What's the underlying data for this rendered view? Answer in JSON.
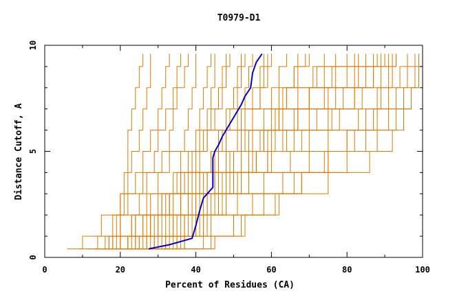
{
  "chart_data": {
    "type": "line",
    "title": "T0979-D1",
    "xlabel": "Percent of Residues (CA)",
    "ylabel": "Distance Cutoff, A",
    "xlim": [
      0,
      100
    ],
    "ylim": [
      0,
      10
    ],
    "x_ticks": [
      "0",
      "20",
      "40",
      "60",
      "80",
      "100"
    ],
    "y_ticks": [
      "0",
      "5",
      "10"
    ],
    "grid": false,
    "colors": {
      "background_series": "#e07800",
      "highlight_series": "#0000cc",
      "axis": "#000000"
    },
    "highlight_series": {
      "x": [
        27.5,
        33,
        39,
        40,
        41,
        42,
        43,
        44.5,
        44.5,
        44.5,
        45,
        46,
        47,
        48,
        49,
        50,
        51,
        52,
        53,
        54.5,
        55,
        56,
        57.5
      ],
      "y": [
        0.4,
        0.6,
        0.9,
        1.5,
        2.2,
        2.8,
        3.0,
        3.3,
        4.0,
        4.7,
        5.0,
        5.3,
        5.7,
        6.0,
        6.3,
        6.6,
        6.9,
        7.2,
        7.6,
        8.0,
        8.7,
        9.2,
        9.6
      ]
    },
    "background_series": [
      {
        "x": [
          13,
          17,
          19,
          21,
          22,
          23,
          25,
          26,
          27,
          28,
          28
        ],
        "y": [
          0.4,
          1.0,
          2.0,
          3.0,
          4.0,
          5.0,
          6.0,
          7.0,
          8.0,
          9.0,
          9.6
        ]
      },
      {
        "x": [
          14,
          18,
          20,
          22,
          24,
          26,
          28,
          30,
          31,
          32,
          33
        ],
        "y": [
          0.4,
          1.0,
          2.0,
          3.0,
          4.0,
          5.0,
          6.0,
          7.0,
          8.0,
          9.0,
          9.6
        ]
      },
      {
        "x": [
          15,
          20,
          23,
          25,
          27,
          29,
          30,
          32,
          34,
          35,
          36
        ],
        "y": [
          0.4,
          1.0,
          2.0,
          3.0,
          4.0,
          5.0,
          6.0,
          7.0,
          8.0,
          9.0,
          9.6
        ]
      },
      {
        "x": [
          16,
          22,
          26,
          28,
          30,
          31,
          33,
          34,
          35,
          37,
          38
        ],
        "y": [
          0.4,
          1.0,
          2.0,
          3.0,
          4.0,
          5.0,
          6.0,
          7.0,
          8.0,
          9.0,
          9.6
        ]
      },
      {
        "x": [
          17,
          24,
          28,
          31,
          34,
          36,
          37,
          38,
          39,
          40,
          40
        ],
        "y": [
          0.4,
          1.0,
          2.0,
          3.0,
          4.0,
          5.0,
          6.0,
          7.0,
          8.0,
          9.0,
          9.6
        ]
      },
      {
        "x": [
          18,
          25,
          30,
          33,
          36,
          38,
          40,
          41,
          42,
          43,
          44
        ],
        "y": [
          0.4,
          1.0,
          2.0,
          3.0,
          4.0,
          5.0,
          6.0,
          7.0,
          8.0,
          9.0,
          9.6
        ]
      },
      {
        "x": [
          19,
          26,
          32,
          36,
          39,
          41,
          43,
          44,
          46,
          47,
          48
        ],
        "y": [
          0.4,
          1.0,
          2.0,
          3.0,
          4.0,
          5.0,
          6.0,
          7.0,
          8.0,
          9.0,
          9.6
        ]
      },
      {
        "x": [
          20,
          28,
          34,
          38,
          41,
          44,
          46,
          48,
          50,
          51,
          52
        ],
        "y": [
          0.4,
          1.0,
          2.0,
          3.0,
          4.0,
          5.0,
          6.0,
          7.0,
          8.0,
          9.0,
          9.6
        ]
      },
      {
        "x": [
          21,
          29,
          35,
          40,
          43,
          46,
          48,
          51,
          53,
          54,
          55
        ],
        "y": [
          0.4,
          1.0,
          2.0,
          3.0,
          4.0,
          5.0,
          6.0,
          7.0,
          8.0,
          9.0,
          9.6
        ]
      },
      {
        "x": [
          22,
          30,
          36,
          41,
          45,
          48,
          51,
          53,
          55,
          57,
          58
        ],
        "y": [
          0.4,
          1.0,
          2.0,
          3.0,
          4.0,
          5.0,
          6.0,
          7.0,
          8.0,
          9.0,
          9.6
        ]
      },
      {
        "x": [
          23,
          32,
          38,
          43,
          47,
          50,
          53,
          55,
          57,
          59,
          60
        ],
        "y": [
          0.4,
          1.0,
          2.0,
          3.0,
          4.0,
          5.0,
          6.0,
          7.0,
          8.0,
          9.0,
          9.6
        ]
      },
      {
        "x": [
          25,
          33,
          39,
          44,
          48,
          52,
          55,
          58,
          60,
          62,
          64
        ],
        "y": [
          0.4,
          1.0,
          2.0,
          3.0,
          4.0,
          5.0,
          6.0,
          7.0,
          8.0,
          9.0,
          9.6
        ]
      },
      {
        "x": [
          26,
          34,
          40,
          45,
          50,
          54,
          57,
          60,
          63,
          66,
          69
        ],
        "y": [
          0.4,
          1.0,
          2.0,
          3.0,
          4.0,
          5.0,
          6.0,
          7.0,
          8.0,
          9.0,
          9.6
        ]
      },
      {
        "x": [
          28,
          35,
          41,
          46,
          51,
          55,
          58,
          61,
          64,
          67,
          70
        ],
        "y": [
          0.4,
          1.0,
          2.0,
          3.0,
          4.0,
          5.0,
          6.0,
          7.0,
          8.0,
          9.0,
          9.6
        ]
      },
      {
        "x": [
          30,
          36,
          42,
          47,
          52,
          56,
          60,
          63,
          67,
          71,
          74
        ],
        "y": [
          0.4,
          1.0,
          2.0,
          3.0,
          4.0,
          5.0,
          6.0,
          7.0,
          8.0,
          9.0,
          9.6
        ]
      },
      {
        "x": [
          32,
          37,
          42,
          48,
          54,
          59,
          63,
          67,
          70,
          74,
          77
        ],
        "y": [
          0.4,
          1.0,
          2.0,
          3.0,
          4.0,
          5.0,
          6.0,
          7.0,
          8.0,
          9.0,
          9.6
        ]
      },
      {
        "x": [
          13,
          18,
          23,
          30,
          38,
          46,
          54,
          62,
          70,
          76,
          82
        ],
        "y": [
          0.4,
          1.0,
          2.0,
          3.0,
          4.0,
          5.0,
          6.0,
          7.0,
          8.0,
          9.0,
          9.6
        ]
      },
      {
        "x": [
          14,
          19,
          24,
          32,
          41,
          50,
          58,
          66,
          74,
          80,
          85
        ],
        "y": [
          0.4,
          1.0,
          2.0,
          3.0,
          4.0,
          5.0,
          6.0,
          7.0,
          8.0,
          9.0,
          9.6
        ]
      },
      {
        "x": [
          15,
          20,
          26,
          34,
          43,
          52,
          61,
          70,
          77,
          83,
          88
        ],
        "y": [
          0.4,
          1.0,
          2.0,
          3.0,
          4.0,
          5.0,
          6.0,
          7.0,
          8.0,
          9.0,
          9.6
        ]
      },
      {
        "x": [
          16,
          22,
          28,
          36,
          46,
          56,
          66,
          75,
          82,
          87,
          91
        ],
        "y": [
          0.4,
          1.0,
          2.0,
          3.0,
          4.0,
          5.0,
          6.0,
          7.0,
          8.0,
          9.0,
          9.6
        ]
      },
      {
        "x": [
          18,
          24,
          31,
          40,
          50,
          60,
          70,
          78,
          84,
          89,
          92
        ],
        "y": [
          0.4,
          1.0,
          2.0,
          3.0,
          4.0,
          5.0,
          6.0,
          7.0,
          8.0,
          9.0,
          9.6
        ]
      },
      {
        "x": [
          20,
          27,
          34,
          43,
          54,
          65,
          75,
          83,
          88,
          91,
          93
        ],
        "y": [
          0.4,
          1.0,
          2.0,
          3.0,
          4.0,
          5.0,
          6.0,
          7.0,
          8.0,
          9.0,
          9.6
        ]
      },
      {
        "x": [
          22,
          29,
          37,
          47,
          58,
          70,
          80,
          88,
          93,
          96,
          98
        ],
        "y": [
          0.4,
          1.0,
          2.0,
          3.0,
          4.0,
          5.0,
          6.0,
          7.0,
          8.0,
          9.0,
          9.6
        ]
      },
      {
        "x": [
          24,
          32,
          40,
          51,
          63,
          75,
          85,
          91,
          95,
          98,
          99
        ],
        "y": [
          0.4,
          1.0,
          2.0,
          3.0,
          4.0,
          5.0,
          6.0,
          7.0,
          8.0,
          9.0,
          9.6
        ]
      },
      {
        "x": [
          26,
          35,
          44,
          55,
          68,
          80,
          88,
          93,
          97,
          99,
          100
        ],
        "y": [
          0.4,
          1.0,
          2.0,
          3.0,
          4.0,
          5.0,
          6.0,
          7.0,
          8.0,
          9.0,
          9.6
        ]
      },
      {
        "x": [
          36,
          44,
          52,
          62,
          75,
          86,
          92,
          95,
          97,
          99,
          100
        ],
        "y": [
          0.4,
          1.0,
          2.0,
          3.0,
          4.0,
          5.0,
          6.0,
          7.0,
          8.0,
          9.0,
          9.6
        ]
      },
      {
        "x": [
          6,
          10,
          15,
          20,
          26,
          33,
          42,
          52,
          62,
          72,
          80
        ],
        "y": [
          0.4,
          1.0,
          2.0,
          3.0,
          4.0,
          5.0,
          6.0,
          7.0,
          8.0,
          9.0,
          9.6
        ]
      },
      {
        "x": [
          9,
          14,
          20,
          27,
          35,
          44,
          53,
          62,
          70,
          77,
          83
        ],
        "y": [
          0.4,
          1.0,
          2.0,
          3.0,
          4.0,
          5.0,
          6.0,
          7.0,
          8.0,
          9.0,
          9.6
        ]
      },
      {
        "x": [
          11,
          17,
          24,
          31,
          40,
          49,
          58,
          67,
          75,
          82,
          87
        ],
        "y": [
          0.4,
          1.0,
          2.0,
          3.0,
          4.0,
          5.0,
          6.0,
          7.0,
          8.0,
          9.0,
          9.6
        ]
      },
      {
        "x": [
          13,
          20,
          27,
          36,
          45,
          55,
          64,
          72,
          79,
          85,
          89
        ],
        "y": [
          0.4,
          1.0,
          2.0,
          3.0,
          4.0,
          5.0,
          6.0,
          7.0,
          8.0,
          9.0,
          9.6
        ]
      },
      {
        "x": [
          15,
          22,
          30,
          39,
          49,
          59,
          68,
          76,
          82,
          87,
          90
        ],
        "y": [
          0.4,
          1.0,
          2.0,
          3.0,
          4.0,
          5.0,
          6.0,
          7.0,
          8.0,
          9.0,
          9.6
        ]
      },
      {
        "x": [
          33,
          42,
          50,
          58,
          66,
          74,
          80,
          85,
          89,
          92,
          93
        ],
        "y": [
          0.4,
          1.0,
          2.0,
          3.0,
          4.0,
          5.0,
          6.0,
          7.0,
          8.0,
          9.0,
          9.6
        ]
      },
      {
        "x": [
          35,
          45,
          53,
          61,
          68,
          75,
          82,
          87,
          91,
          94,
          96
        ],
        "y": [
          0.4,
          1.0,
          2.0,
          3.0,
          4.0,
          5.0,
          6.0,
          7.0,
          8.0,
          9.0,
          9.6
        ]
      },
      {
        "x": [
          17,
          23,
          28,
          33,
          36,
          39,
          41,
          43,
          44,
          45,
          45
        ],
        "y": [
          0.4,
          1.0,
          2.0,
          3.0,
          4.0,
          5.0,
          6.0,
          7.0,
          8.0,
          9.0,
          9.6
        ]
      },
      {
        "x": [
          19,
          25,
          29,
          33,
          37,
          40,
          43,
          45,
          47,
          48,
          49
        ],
        "y": [
          0.4,
          1.0,
          2.0,
          3.0,
          4.0,
          5.0,
          6.0,
          7.0,
          8.0,
          9.0,
          9.6
        ]
      },
      {
        "x": [
          21,
          27,
          33,
          38,
          42,
          45,
          47,
          49,
          51,
          52,
          53
        ],
        "y": [
          0.4,
          1.0,
          2.0,
          3.0,
          4.0,
          5.0,
          6.0,
          7.0,
          8.0,
          9.0,
          9.6
        ]
      },
      {
        "x": [
          24,
          31,
          37,
          42,
          46,
          49,
          52,
          55,
          57,
          58,
          59
        ],
        "y": [
          0.4,
          1.0,
          2.0,
          3.0,
          4.0,
          5.0,
          6.0,
          7.0,
          8.0,
          9.0,
          9.6
        ]
      },
      {
        "x": [
          29,
          37,
          43,
          48,
          52,
          56,
          59,
          62,
          64,
          66,
          67
        ],
        "y": [
          0.4,
          1.0,
          2.0,
          3.0,
          4.0,
          5.0,
          6.0,
          7.0,
          8.0,
          9.0,
          9.6
        ]
      },
      {
        "x": [
          12,
          16,
          18,
          20,
          21,
          22,
          22,
          23,
          24,
          25,
          26
        ],
        "y": [
          0.4,
          1.0,
          2.0,
          3.0,
          4.0,
          5.0,
          6.0,
          7.0,
          8.0,
          9.0,
          9.6
        ]
      }
    ]
  }
}
